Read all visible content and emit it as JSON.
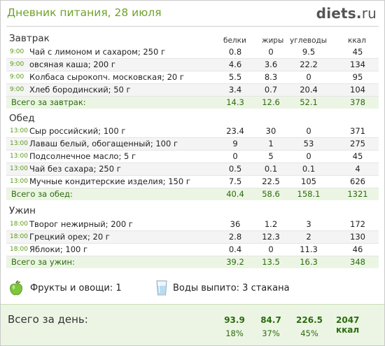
{
  "header": {
    "title": "Дневник питания, 28 июля",
    "logo_main": "diets",
    "logo_dot": ".",
    "logo_tld": "ru"
  },
  "columns": {
    "protein": "белки",
    "fat": "жиры",
    "carbs": "углеводы",
    "kcal": "ккал"
  },
  "meals": [
    {
      "name": "Завтрак",
      "items": [
        {
          "time": "9:00",
          "food": "Чай с лимоном и сахаром; 250 г",
          "protein": "0.8",
          "fat": "0",
          "carbs": "9.5",
          "kcal": "45"
        },
        {
          "time": "9:00",
          "food": "овсяная каша; 200 г",
          "protein": "4.6",
          "fat": "3.6",
          "carbs": "22.2",
          "kcal": "134"
        },
        {
          "time": "9:00",
          "food": "Колбаса сырокопч. московская; 20 г",
          "protein": "5.5",
          "fat": "8.3",
          "carbs": "0",
          "kcal": "95"
        },
        {
          "time": "9:00",
          "food": "Хлеб бородинский; 50 г",
          "protein": "3.4",
          "fat": "0.7",
          "carbs": "20.4",
          "kcal": "104"
        }
      ],
      "total": {
        "label": "Всего за завтрак:",
        "protein": "14.3",
        "fat": "12.6",
        "carbs": "52.1",
        "kcal": "378"
      }
    },
    {
      "name": "Обед",
      "items": [
        {
          "time": "13:00",
          "food": "Сыр российский; 100 г",
          "protein": "23.4",
          "fat": "30",
          "carbs": "0",
          "kcal": "371"
        },
        {
          "time": "13:00",
          "food": "Лаваш белый, обогащенный; 100 г",
          "protein": "9",
          "fat": "1",
          "carbs": "53",
          "kcal": "275"
        },
        {
          "time": "13:00",
          "food": "Подсолнечное масло; 5 г",
          "protein": "0",
          "fat": "5",
          "carbs": "0",
          "kcal": "45"
        },
        {
          "time": "13:00",
          "food": "Чай без сахара; 250 г",
          "protein": "0.5",
          "fat": "0.1",
          "carbs": "0.1",
          "kcal": "4"
        },
        {
          "time": "13:00",
          "food": "Мучные кондитерские изделия; 150 г",
          "protein": "7.5",
          "fat": "22.5",
          "carbs": "105",
          "kcal": "626"
        }
      ],
      "total": {
        "label": "Всего за обед:",
        "protein": "40.4",
        "fat": "58.6",
        "carbs": "158.1",
        "kcal": "1321"
      }
    },
    {
      "name": "Ужин",
      "items": [
        {
          "time": "18:00",
          "food": "Творог нежирный; 200 г",
          "protein": "36",
          "fat": "1.2",
          "carbs": "3",
          "kcal": "172"
        },
        {
          "time": "18:00",
          "food": "Грецкий орех; 20 г",
          "protein": "2.8",
          "fat": "12.3",
          "carbs": "2",
          "kcal": "130"
        },
        {
          "time": "18:00",
          "food": "Яблоки; 100 г",
          "protein": "0.4",
          "fat": "0",
          "carbs": "11.3",
          "kcal": "46"
        }
      ],
      "total": {
        "label": "Всего за ужин:",
        "protein": "39.2",
        "fat": "13.5",
        "carbs": "16.3",
        "kcal": "348"
      }
    }
  ],
  "extras": {
    "fruit_icon": "green-apple-icon",
    "fruit_text": "Фрукты и овощи: 1",
    "water_icon": "water-glass-icon",
    "water_text": "Воды выпито: 3 стакана"
  },
  "day_total": {
    "label": "Всего за день:",
    "protein": "93.9",
    "fat": "84.7",
    "carbs": "226.5",
    "kcal": "2047 ккал",
    "protein_pct": "18%",
    "fat_pct": "37%",
    "carbs_pct": "45%"
  },
  "colors": {
    "accent_green": "#6fa32a",
    "total_text": "#2c6b0f",
    "total_bg": "#ecf5e4"
  }
}
